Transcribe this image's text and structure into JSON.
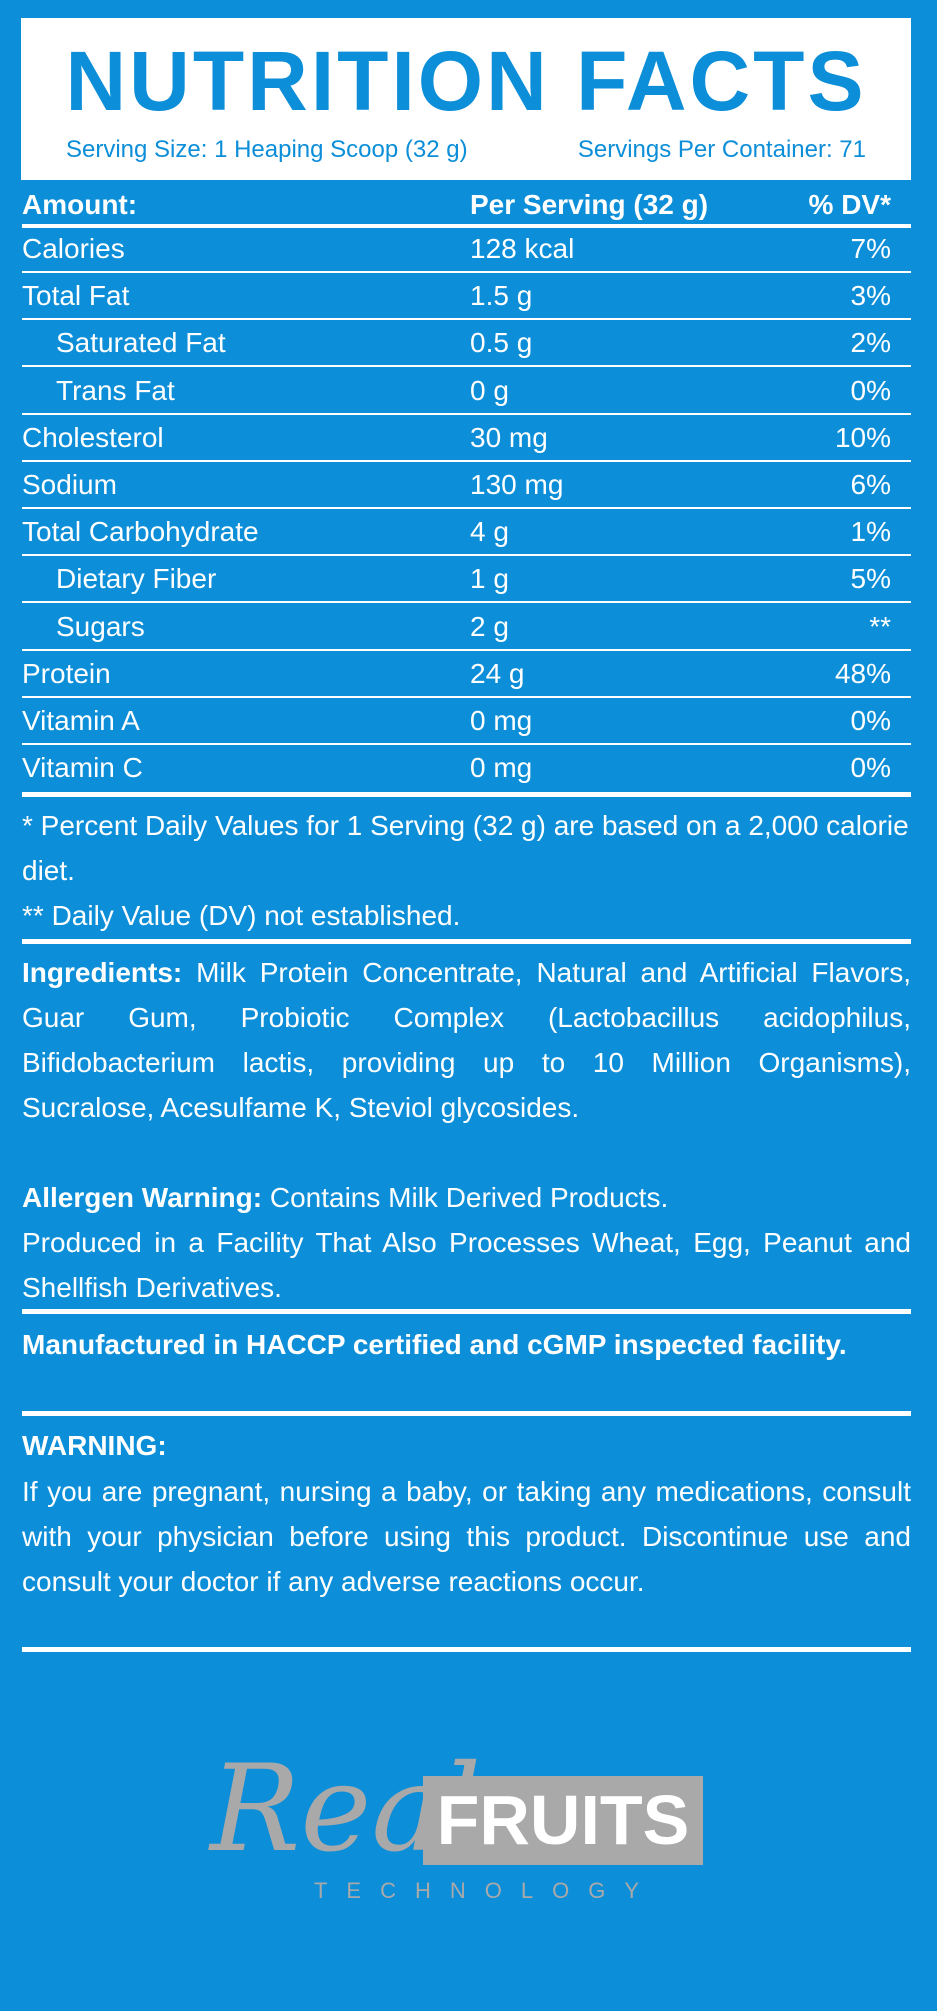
{
  "header": {
    "title": "NUTRITION FACTS",
    "serving_size": "Serving Size: 1 Heaping Scoop (32 g)",
    "servings_per_container": "Servings Per Container: 71"
  },
  "table": {
    "columns": [
      "Amount:",
      "Per Serving (32 g)",
      "% DV*"
    ],
    "rows": [
      [
        "Calories",
        "128 kcal",
        "7%"
      ],
      [
        "Total Fat",
        "1.5 g",
        "3%"
      ],
      [
        "Saturated Fat",
        "0.5 g",
        "2%"
      ],
      [
        "Trans Fat",
        "0 g",
        "0%"
      ],
      [
        "Cholesterol",
        "30 mg",
        "10%"
      ],
      [
        "Sodium",
        "130 mg",
        "6%"
      ],
      [
        "Total Carbohydrate",
        "4 g",
        "1%"
      ],
      [
        "Dietary Fiber",
        "1 g",
        "5%"
      ],
      [
        "Sugars",
        "2 g",
        "**"
      ],
      [
        "Protein",
        "24 g",
        "48%"
      ],
      [
        "Vitamin A",
        "0 mg",
        "0%"
      ],
      [
        "Vitamin C",
        "0 mg",
        "0%"
      ]
    ]
  },
  "footnotes": [
    "* Percent Daily Values for 1 Serving (32 g) are based on a 2,000 calorie diet.",
    "** Daily Value (DV) not established."
  ],
  "ingredients": {
    "label": "Ingredients:",
    "text": "Milk Protein Concentrate, Natural and Artificial Flavors, Guar Gum, Probiotic Complex (Lactobacillus acidophilus, Bifidobacterium lactis, providing up to 10 Million Organisms), Sucralose, Acesulfame K, Steviol glycosides."
  },
  "allergen": {
    "label": "Allergen Warning:",
    "text": "Contains Milk Derived Products.",
    "facility": "Produced in a Facility That Also Processes Wheat, Egg, Peanut and Shellfish Derivatives."
  },
  "manufacturing": "Manufactured in HACCP certified and cGMP inspected facility.",
  "warning": {
    "label": "WARNING:",
    "text": "If you are pregnant, nursing a baby, or taking any medications, consult with your physician before using this product. Discontinue use and consult your doctor if any adverse reactions occur."
  },
  "logo": {
    "script": "Real",
    "word": "FRUITS",
    "tagline": "TECHNOLOGY"
  }
}
